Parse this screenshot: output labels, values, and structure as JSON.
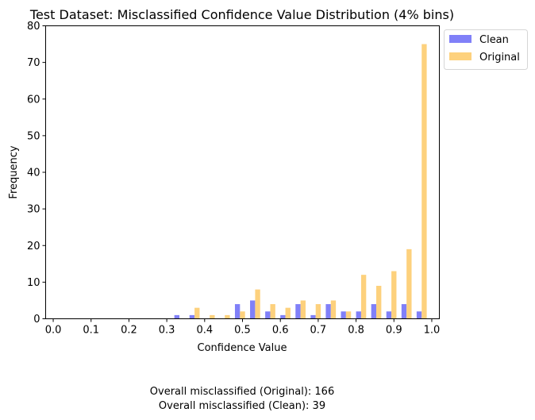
{
  "chart_data": {
    "type": "bar",
    "title": "Test Dataset: Misclassified Confidence Value Distribution (4% bins)",
    "xlabel": "Confidence Value",
    "ylabel": "Frequency",
    "xlim": [
      -0.02,
      1.02
    ],
    "ylim": [
      0,
      80
    ],
    "xticks": [
      0.0,
      0.1,
      0.2,
      0.3,
      0.4,
      0.5,
      0.6,
      0.7,
      0.8,
      0.9,
      1.0
    ],
    "xtick_labels": [
      "0.0",
      "0.1",
      "0.2",
      "0.3",
      "0.4",
      "0.5",
      "0.6",
      "0.7",
      "0.8",
      "0.9",
      "1.0"
    ],
    "yticks": [
      0,
      10,
      20,
      30,
      40,
      50,
      60,
      70,
      80
    ],
    "ytick_labels": [
      "0",
      "10",
      "20",
      "30",
      "40",
      "50",
      "60",
      "70",
      "80"
    ],
    "bin_width": 0.04,
    "bins": [
      0.0,
      0.04,
      0.08,
      0.12,
      0.16,
      0.2,
      0.24,
      0.28,
      0.32,
      0.36,
      0.4,
      0.44,
      0.48,
      0.52,
      0.56,
      0.6,
      0.64,
      0.68,
      0.72,
      0.76,
      0.8,
      0.84,
      0.88,
      0.92,
      0.96
    ],
    "grid": false,
    "legend_position": "outside-top-right",
    "series": [
      {
        "name": "Clean",
        "color": "#8080f8",
        "values": [
          0,
          0,
          0,
          0,
          0,
          0,
          0,
          0,
          1,
          1,
          0,
          0,
          4,
          5,
          2,
          1,
          4,
          1,
          4,
          2,
          2,
          4,
          2,
          4,
          2
        ]
      },
      {
        "name": "Original",
        "color": "#fdd17d",
        "values": [
          0,
          0,
          0,
          0,
          0,
          0,
          0,
          0,
          0,
          3,
          1,
          1,
          2,
          8,
          4,
          3,
          5,
          4,
          5,
          2,
          12,
          9,
          13,
          19,
          75
        ]
      }
    ]
  },
  "footer": {
    "line1": "Overall misclassified (Original): 166",
    "line2": "Overall misclassified (Clean): 39"
  }
}
